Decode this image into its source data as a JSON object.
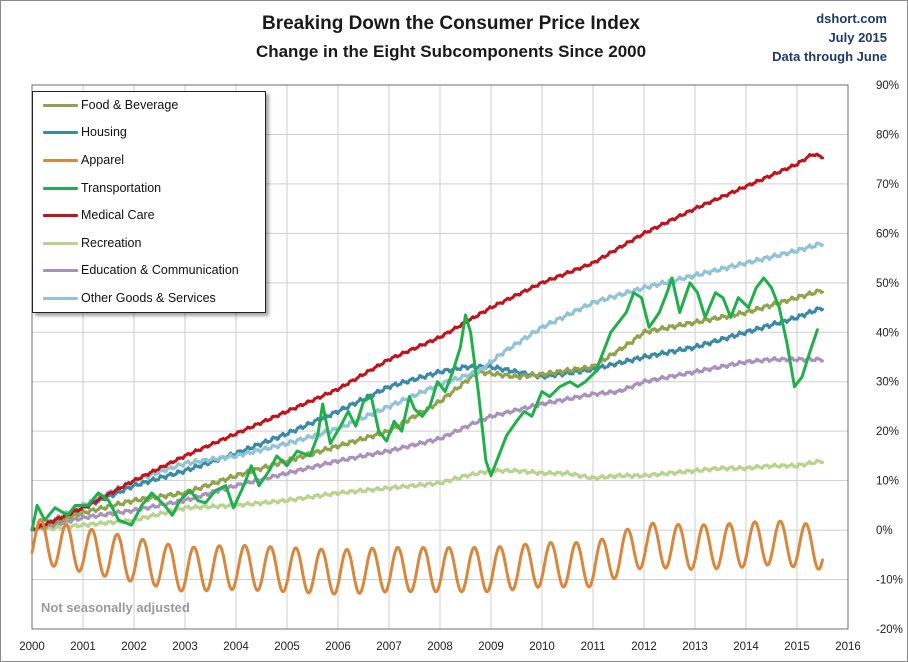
{
  "header": {
    "title": "Breaking Down the Consumer Price Index",
    "subtitle": "Change in the Eight Subcomponents  Since 2000",
    "source": "dshort.com",
    "date": "July 2015",
    "through": "Data through June"
  },
  "note": "Not seasonally adjusted",
  "colors": {
    "food": "#8fa34b",
    "housing": "#3a8aa6",
    "apparel": "#d9873c",
    "transportation": "#1fb04a",
    "medical": "#c0141a",
    "recreation": "#b7d38d",
    "education": "#a891bd",
    "other": "#8ec4d6"
  },
  "chart_data": {
    "type": "line",
    "title": "Breaking Down the Consumer Price Index",
    "xlabel": "",
    "ylabel": "",
    "xlim": [
      2000,
      2016
    ],
    "ylim": [
      -20,
      90
    ],
    "x_ticks": [
      "2000",
      "2001",
      "2002",
      "2003",
      "2004",
      "2005",
      "2006",
      "2007",
      "2008",
      "2009",
      "2010",
      "2011",
      "2012",
      "2013",
      "2014",
      "2015",
      "2016"
    ],
    "y_ticks": [
      "-20%",
      "-10%",
      "0%",
      "10%",
      "20%",
      "30%",
      "40%",
      "50%",
      "60%",
      "70%",
      "80%",
      "90%"
    ],
    "legend_position": "top-left",
    "series": [
      {
        "name": "Food & Beverage",
        "color": "#8fa34b",
        "noise": 0.3,
        "points": [
          [
            2000,
            0
          ],
          [
            2001,
            3.5
          ],
          [
            2002,
            6
          ],
          [
            2003,
            7.5
          ],
          [
            2004,
            11
          ],
          [
            2005,
            14
          ],
          [
            2006,
            17
          ],
          [
            2007,
            20
          ],
          [
            2008,
            26
          ],
          [
            2008.75,
            32
          ],
          [
            2009.5,
            31
          ],
          [
            2010,
            31.5
          ],
          [
            2011,
            33
          ],
          [
            2011.75,
            38
          ],
          [
            2012,
            40
          ],
          [
            2013,
            42
          ],
          [
            2014,
            44
          ],
          [
            2015,
            47
          ],
          [
            2015.5,
            48.5
          ]
        ]
      },
      {
        "name": "Housing",
        "color": "#3a8aa6",
        "noise": 0.3,
        "points": [
          [
            2000,
            0
          ],
          [
            2001,
            4.5
          ],
          [
            2002,
            9
          ],
          [
            2003,
            12
          ],
          [
            2004,
            15.5
          ],
          [
            2005,
            19.5
          ],
          [
            2006,
            24
          ],
          [
            2006.5,
            26.5
          ],
          [
            2007,
            29
          ],
          [
            2008,
            32
          ],
          [
            2008.5,
            33
          ],
          [
            2009,
            33
          ],
          [
            2010,
            31
          ],
          [
            2011,
            32.5
          ],
          [
            2012,
            35
          ],
          [
            2013,
            37
          ],
          [
            2014,
            40
          ],
          [
            2015,
            43
          ],
          [
            2015.5,
            45
          ]
        ]
      },
      {
        "name": "Apparel",
        "color": "#d9873c",
        "osc": 4.5,
        "points": [
          [
            2000,
            -2
          ],
          [
            2001,
            -4
          ],
          [
            2002,
            -6
          ],
          [
            2003,
            -8
          ],
          [
            2004,
            -7.5
          ],
          [
            2005,
            -8
          ],
          [
            2006,
            -8.5
          ],
          [
            2007,
            -8
          ],
          [
            2008,
            -8
          ],
          [
            2009,
            -8
          ],
          [
            2010,
            -7
          ],
          [
            2011,
            -7
          ],
          [
            2011.5,
            -5
          ],
          [
            2012,
            -3
          ],
          [
            2013,
            -3.5
          ],
          [
            2014,
            -3
          ],
          [
            2014.5,
            -2.5
          ],
          [
            2015,
            -3
          ],
          [
            2015.5,
            -3.5
          ]
        ]
      },
      {
        "name": "Transportation",
        "color": "#1fb04a",
        "noise": 0,
        "points": [
          [
            2000,
            0
          ],
          [
            2000.1,
            5
          ],
          [
            2000.25,
            2
          ],
          [
            2000.45,
            4.5
          ],
          [
            2000.7,
            3
          ],
          [
            2000.85,
            5
          ],
          [
            2001.1,
            5
          ],
          [
            2001.3,
            7.5
          ],
          [
            2001.5,
            6
          ],
          [
            2001.7,
            2
          ],
          [
            2001.95,
            1
          ],
          [
            2002.15,
            5
          ],
          [
            2002.35,
            7.5
          ],
          [
            2002.6,
            5
          ],
          [
            2002.75,
            3
          ],
          [
            2002.9,
            6
          ],
          [
            2003.1,
            8
          ],
          [
            2003.25,
            6
          ],
          [
            2003.4,
            5.5
          ],
          [
            2003.6,
            8
          ],
          [
            2003.8,
            9
          ],
          [
            2003.95,
            4.5
          ],
          [
            2004.15,
            9
          ],
          [
            2004.3,
            13
          ],
          [
            2004.45,
            9
          ],
          [
            2004.65,
            12
          ],
          [
            2004.8,
            15
          ],
          [
            2005,
            13
          ],
          [
            2005.2,
            16
          ],
          [
            2005.45,
            15
          ],
          [
            2005.6,
            19
          ],
          [
            2005.7,
            25.5
          ],
          [
            2005.85,
            17.5
          ],
          [
            2006.05,
            21
          ],
          [
            2006.2,
            24
          ],
          [
            2006.35,
            21
          ],
          [
            2006.5,
            26
          ],
          [
            2006.65,
            27
          ],
          [
            2006.8,
            20
          ],
          [
            2006.95,
            18
          ],
          [
            2007.1,
            22
          ],
          [
            2007.25,
            20
          ],
          [
            2007.4,
            27
          ],
          [
            2007.5,
            24.5
          ],
          [
            2007.65,
            23
          ],
          [
            2007.8,
            25
          ],
          [
            2007.95,
            30
          ],
          [
            2008.1,
            28
          ],
          [
            2008.25,
            32
          ],
          [
            2008.4,
            37
          ],
          [
            2008.5,
            43.5
          ],
          [
            2008.6,
            40
          ],
          [
            2008.75,
            28
          ],
          [
            2008.9,
            14
          ],
          [
            2009.0,
            11
          ],
          [
            2009.15,
            15
          ],
          [
            2009.3,
            19
          ],
          [
            2009.5,
            22
          ],
          [
            2009.65,
            24
          ],
          [
            2009.8,
            23
          ],
          [
            2010,
            28
          ],
          [
            2010.15,
            27
          ],
          [
            2010.35,
            29
          ],
          [
            2010.55,
            30
          ],
          [
            2010.7,
            29
          ],
          [
            2010.85,
            30
          ],
          [
            2011.05,
            32
          ],
          [
            2011.2,
            36
          ],
          [
            2011.35,
            40
          ],
          [
            2011.5,
            42
          ],
          [
            2011.65,
            44
          ],
          [
            2011.8,
            48
          ],
          [
            2011.95,
            47
          ],
          [
            2012.1,
            41
          ],
          [
            2012.3,
            44
          ],
          [
            2012.45,
            48
          ],
          [
            2012.55,
            51
          ],
          [
            2012.7,
            44
          ],
          [
            2012.9,
            50
          ],
          [
            2013.05,
            48
          ],
          [
            2013.2,
            43
          ],
          [
            2013.4,
            48
          ],
          [
            2013.55,
            47
          ],
          [
            2013.7,
            43
          ],
          [
            2013.85,
            47
          ],
          [
            2014.05,
            45
          ],
          [
            2014.2,
            49
          ],
          [
            2014.35,
            51
          ],
          [
            2014.5,
            49
          ],
          [
            2014.65,
            45
          ],
          [
            2014.8,
            38
          ],
          [
            2014.95,
            29
          ],
          [
            2015.1,
            31
          ],
          [
            2015.25,
            36
          ],
          [
            2015.4,
            40.5
          ]
        ]
      },
      {
        "name": "Medical Care",
        "color": "#c0141a",
        "noise": 0.2,
        "points": [
          [
            2000,
            0
          ],
          [
            2001,
            4.5
          ],
          [
            2002,
            10
          ],
          [
            2003,
            15
          ],
          [
            2004,
            19.5
          ],
          [
            2005,
            24
          ],
          [
            2006,
            28.5
          ],
          [
            2007,
            34.5
          ],
          [
            2008,
            39
          ],
          [
            2009,
            45
          ],
          [
            2010,
            50
          ],
          [
            2011,
            54
          ],
          [
            2012,
            60
          ],
          [
            2013,
            65
          ],
          [
            2014,
            69.5
          ],
          [
            2015,
            74
          ],
          [
            2015.3,
            76
          ],
          [
            2015.5,
            75.5
          ]
        ]
      },
      {
        "name": "Recreation",
        "color": "#b7d38d",
        "noise": 0.25,
        "points": [
          [
            2000,
            0
          ],
          [
            2001,
            1
          ],
          [
            2002,
            2
          ],
          [
            2003,
            4.5
          ],
          [
            2004,
            5
          ],
          [
            2005,
            6
          ],
          [
            2006,
            7.5
          ],
          [
            2007,
            8.5
          ],
          [
            2008,
            9.5
          ],
          [
            2008.5,
            11
          ],
          [
            2009,
            12
          ],
          [
            2009.5,
            12
          ],
          [
            2010,
            11.5
          ],
          [
            2010.5,
            11.5
          ],
          [
            2011,
            10.5
          ],
          [
            2011.5,
            11
          ],
          [
            2012,
            11
          ],
          [
            2012.5,
            11.5
          ],
          [
            2013,
            12
          ],
          [
            2013.5,
            12.5
          ],
          [
            2014,
            12.5
          ],
          [
            2014.5,
            13
          ],
          [
            2015,
            13
          ],
          [
            2015.5,
            14
          ]
        ]
      },
      {
        "name": "Education & Communication",
        "color": "#a891bd",
        "noise": 0.25,
        "points": [
          [
            2000,
            0
          ],
          [
            2001,
            2.5
          ],
          [
            2002,
            4
          ],
          [
            2003,
            6
          ],
          [
            2004,
            9
          ],
          [
            2005,
            11.5
          ],
          [
            2006,
            14
          ],
          [
            2007,
            16
          ],
          [
            2008,
            18.5
          ],
          [
            2008.75,
            22
          ],
          [
            2009,
            23
          ],
          [
            2010,
            25.5
          ],
          [
            2011,
            27.5
          ],
          [
            2011.5,
            28
          ],
          [
            2012,
            30
          ],
          [
            2013,
            32
          ],
          [
            2013.5,
            33
          ],
          [
            2014,
            34
          ],
          [
            2014.5,
            34.5
          ],
          [
            2015,
            34.5
          ],
          [
            2015.5,
            34.5
          ]
        ]
      },
      {
        "name": "Other Goods & Services",
        "color": "#8ec4d6",
        "noise": 0.3,
        "points": [
          [
            2000,
            0
          ],
          [
            2001,
            5
          ],
          [
            2002,
            10
          ],
          [
            2003,
            13.5
          ],
          [
            2004,
            15
          ],
          [
            2005,
            17.5
          ],
          [
            2006,
            20.5
          ],
          [
            2007,
            25
          ],
          [
            2008,
            29.5
          ],
          [
            2008.75,
            32
          ],
          [
            2009.25,
            36
          ],
          [
            2010,
            41
          ],
          [
            2011,
            46
          ],
          [
            2012,
            49
          ],
          [
            2013,
            51.5
          ],
          [
            2014,
            54
          ],
          [
            2015,
            56.5
          ],
          [
            2015.5,
            58
          ]
        ]
      }
    ]
  }
}
